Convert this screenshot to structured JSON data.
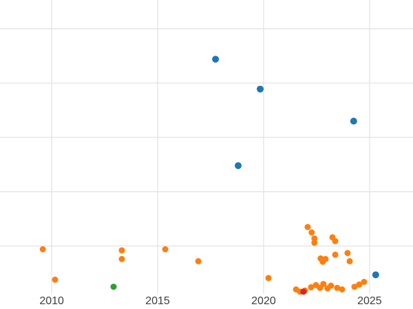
{
  "chart": {
    "background": "#ffffff",
    "grid_color": "#e3e3e3",
    "tick_label_color": "#3d3d3d"
  },
  "chart_data": {
    "type": "scatter",
    "title": "",
    "xlabel": "",
    "ylabel": "",
    "grid": true,
    "legend": "none",
    "xlim": [
      2007.56,
      2027.05
    ],
    "ylim": [
      -0.16,
      5.53
    ],
    "x_tick_values": [
      2010,
      2015,
      2020,
      2025
    ],
    "x_tick_labels": [
      "2010",
      "2015",
      "2020",
      "2025"
    ],
    "y_gridline_values": [
      1,
      2,
      3,
      4,
      5
    ],
    "series": [
      {
        "name": "orange-series",
        "color": "#ff7f0e",
        "radius": 4.5,
        "points": [
          [
            2009.58,
            0.94
          ],
          [
            2010.16,
            0.38
          ],
          [
            2013.31,
            0.92
          ],
          [
            2013.31,
            0.76
          ],
          [
            2015.36,
            0.94
          ],
          [
            2016.92,
            0.72
          ],
          [
            2020.23,
            0.41
          ],
          [
            2022.08,
            1.35
          ],
          [
            2022.27,
            1.25
          ],
          [
            2022.4,
            1.14
          ],
          [
            2022.4,
            1.06
          ],
          [
            2023.25,
            1.16
          ],
          [
            2023.38,
            1.09
          ],
          [
            2022.69,
            0.77
          ],
          [
            2022.79,
            0.71
          ],
          [
            2022.92,
            0.76
          ],
          [
            2023.38,
            0.84
          ],
          [
            2023.96,
            0.87
          ],
          [
            2024.06,
            0.72
          ],
          [
            2021.53,
            0.2
          ],
          [
            2021.72,
            0.16
          ],
          [
            2021.95,
            0.18
          ],
          [
            2022.24,
            0.24
          ],
          [
            2022.47,
            0.28
          ],
          [
            2022.66,
            0.23
          ],
          [
            2022.82,
            0.3
          ],
          [
            2023.02,
            0.22
          ],
          [
            2023.18,
            0.27
          ],
          [
            2023.47,
            0.23
          ],
          [
            2023.7,
            0.2
          ],
          [
            2024.29,
            0.25
          ],
          [
            2024.51,
            0.29
          ],
          [
            2024.74,
            0.34
          ]
        ]
      },
      {
        "name": "green-series",
        "color": "#2ca02c",
        "radius": 4.5,
        "points": [
          [
            2012.92,
            0.25
          ]
        ]
      },
      {
        "name": "red-series",
        "color": "#d62728",
        "radius": 4.5,
        "points": [
          [
            2021.88,
            0.16
          ]
        ]
      },
      {
        "name": "blue-series",
        "color": "#1f77b4",
        "radius": 5,
        "points": [
          [
            2017.73,
            4.44
          ],
          [
            2019.84,
            3.89
          ],
          [
            2024.25,
            3.3
          ],
          [
            2018.8,
            2.48
          ],
          [
            2025.29,
            0.47
          ]
        ]
      }
    ]
  }
}
